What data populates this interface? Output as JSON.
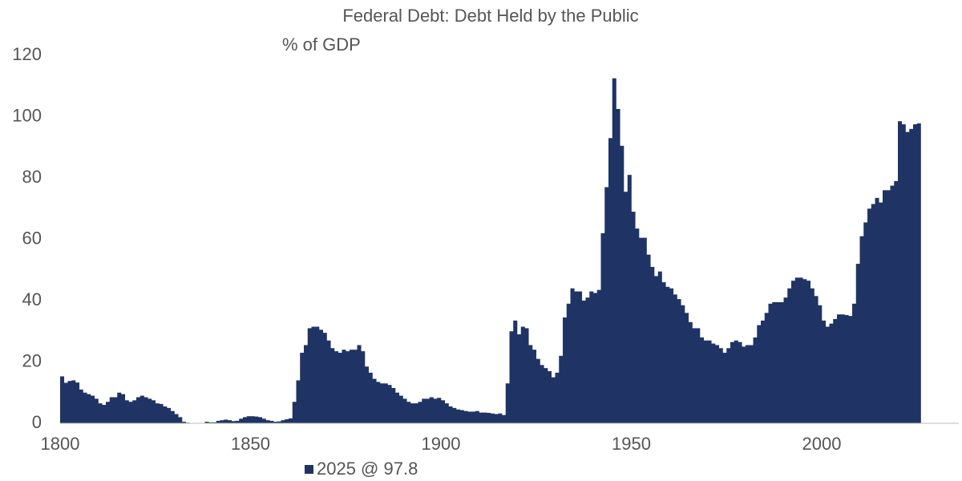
{
  "chart_data": {
    "type": "bar",
    "title": "Federal Debt: Debt Held by the Public",
    "subtitle": "% of GDP",
    "x": [
      1800,
      1801,
      1802,
      1803,
      1804,
      1805,
      1806,
      1807,
      1808,
      1809,
      1810,
      1811,
      1812,
      1813,
      1814,
      1815,
      1816,
      1817,
      1818,
      1819,
      1820,
      1821,
      1822,
      1823,
      1824,
      1825,
      1826,
      1827,
      1828,
      1829,
      1830,
      1831,
      1832,
      1833,
      1834,
      1835,
      1836,
      1837,
      1838,
      1839,
      1840,
      1841,
      1842,
      1843,
      1844,
      1845,
      1846,
      1847,
      1848,
      1849,
      1850,
      1851,
      1852,
      1853,
      1854,
      1855,
      1856,
      1857,
      1858,
      1859,
      1860,
      1861,
      1862,
      1863,
      1864,
      1865,
      1866,
      1867,
      1868,
      1869,
      1870,
      1871,
      1872,
      1873,
      1874,
      1875,
      1876,
      1877,
      1878,
      1879,
      1880,
      1881,
      1882,
      1883,
      1884,
      1885,
      1886,
      1887,
      1888,
      1889,
      1890,
      1891,
      1892,
      1893,
      1894,
      1895,
      1896,
      1897,
      1898,
      1899,
      1900,
      1901,
      1902,
      1903,
      1904,
      1905,
      1906,
      1907,
      1908,
      1909,
      1910,
      1911,
      1912,
      1913,
      1914,
      1915,
      1916,
      1917,
      1918,
      1919,
      1920,
      1921,
      1922,
      1923,
      1924,
      1925,
      1926,
      1927,
      1928,
      1929,
      1930,
      1931,
      1932,
      1933,
      1934,
      1935,
      1936,
      1937,
      1938,
      1939,
      1940,
      1941,
      1942,
      1943,
      1944,
      1945,
      1946,
      1947,
      1948,
      1949,
      1950,
      1951,
      1952,
      1953,
      1954,
      1955,
      1956,
      1957,
      1958,
      1959,
      1960,
      1961,
      1962,
      1963,
      1964,
      1965,
      1966,
      1967,
      1968,
      1969,
      1970,
      1971,
      1972,
      1973,
      1974,
      1975,
      1976,
      1977,
      1978,
      1979,
      1980,
      1981,
      1982,
      1983,
      1984,
      1985,
      1986,
      1987,
      1988,
      1989,
      1990,
      1991,
      1992,
      1993,
      1994,
      1995,
      1996,
      1997,
      1998,
      1999,
      2000,
      2001,
      2002,
      2003,
      2004,
      2005,
      2006,
      2007,
      2008,
      2009,
      2010,
      2011,
      2012,
      2013,
      2014,
      2015,
      2016,
      2017,
      2018,
      2019,
      2020,
      2021,
      2022,
      2023,
      2024,
      2025
    ],
    "series": [
      {
        "name": "2025 @ 97.8",
        "color": "#1f3464",
        "values": [
          15.3,
          13.2,
          13.8,
          14,
          13.3,
          11,
          10,
          9.5,
          9,
          8,
          6.5,
          6,
          7,
          8.5,
          8.5,
          10,
          9.5,
          7.5,
          7,
          7.5,
          8.5,
          9,
          8.5,
          8,
          7.5,
          6.5,
          6.3,
          5.5,
          5,
          4,
          3,
          2,
          0.5,
          0.2,
          0,
          0,
          0,
          0,
          0.5,
          0.3,
          0.3,
          0.8,
          1,
          1.2,
          1,
          0.7,
          0.8,
          1.5,
          2,
          2.3,
          2.3,
          2.2,
          2,
          1.5,
          1,
          0.8,
          0.5,
          0.6,
          1,
          1.3,
          1.6,
          7,
          14,
          23,
          25.5,
          31,
          31.5,
          31.5,
          30.5,
          29.5,
          27,
          24.5,
          23.5,
          23,
          24,
          23.5,
          24,
          24,
          25.5,
          23.5,
          18.5,
          16.5,
          14.5,
          13.5,
          13,
          13,
          12.5,
          11.5,
          10,
          9,
          8,
          7,
          6.5,
          6.5,
          7,
          8,
          8,
          8.5,
          8,
          8.3,
          7.5,
          6.5,
          5.5,
          5,
          4.5,
          4.3,
          4,
          3.8,
          3.8,
          4,
          3.5,
          3.5,
          3.4,
          3.2,
          3,
          3.2,
          2.7,
          13,
          30,
          33.5,
          29,
          31.5,
          31,
          25.5,
          24,
          21,
          19,
          18,
          17,
          15,
          16.5,
          22,
          34.5,
          39,
          44,
          43,
          43,
          40,
          41,
          43,
          42.5,
          43.5,
          62,
          77,
          93,
          112.5,
          102.5,
          90.5,
          75.5,
          81,
          69,
          63.5,
          60.5,
          60.5,
          55,
          51,
          48,
          49.5,
          46,
          44.5,
          44,
          42,
          40.5,
          38.5,
          36,
          33,
          31,
          31,
          28,
          27,
          27,
          26,
          25.5,
          24.5,
          23,
          24.5,
          26.5,
          27,
          26.5,
          25,
          25.5,
          25.5,
          28,
          32,
          33.5,
          36,
          39,
          39.5,
          39.5,
          39.5,
          41,
          44,
          46.5,
          47.5,
          47.5,
          47,
          46.5,
          44,
          41.5,
          38.5,
          33.5,
          31.5,
          32.5,
          34,
          35.5,
          35.5,
          35.3,
          35,
          39,
          52,
          61,
          65.5,
          70,
          71.5,
          73.5,
          72,
          76,
          76,
          77.5,
          79,
          98.5,
          97.5,
          95,
          96,
          97.5,
          97.8
        ]
      }
    ],
    "xlim": [
      1800,
      2036
    ],
    "xticks": [
      1800,
      1850,
      1900,
      1950,
      2000
    ],
    "ylim": [
      0,
      120
    ],
    "yticks": [
      0,
      20,
      40,
      60,
      80,
      100,
      120
    ],
    "grid": false,
    "legend": "bottom"
  }
}
